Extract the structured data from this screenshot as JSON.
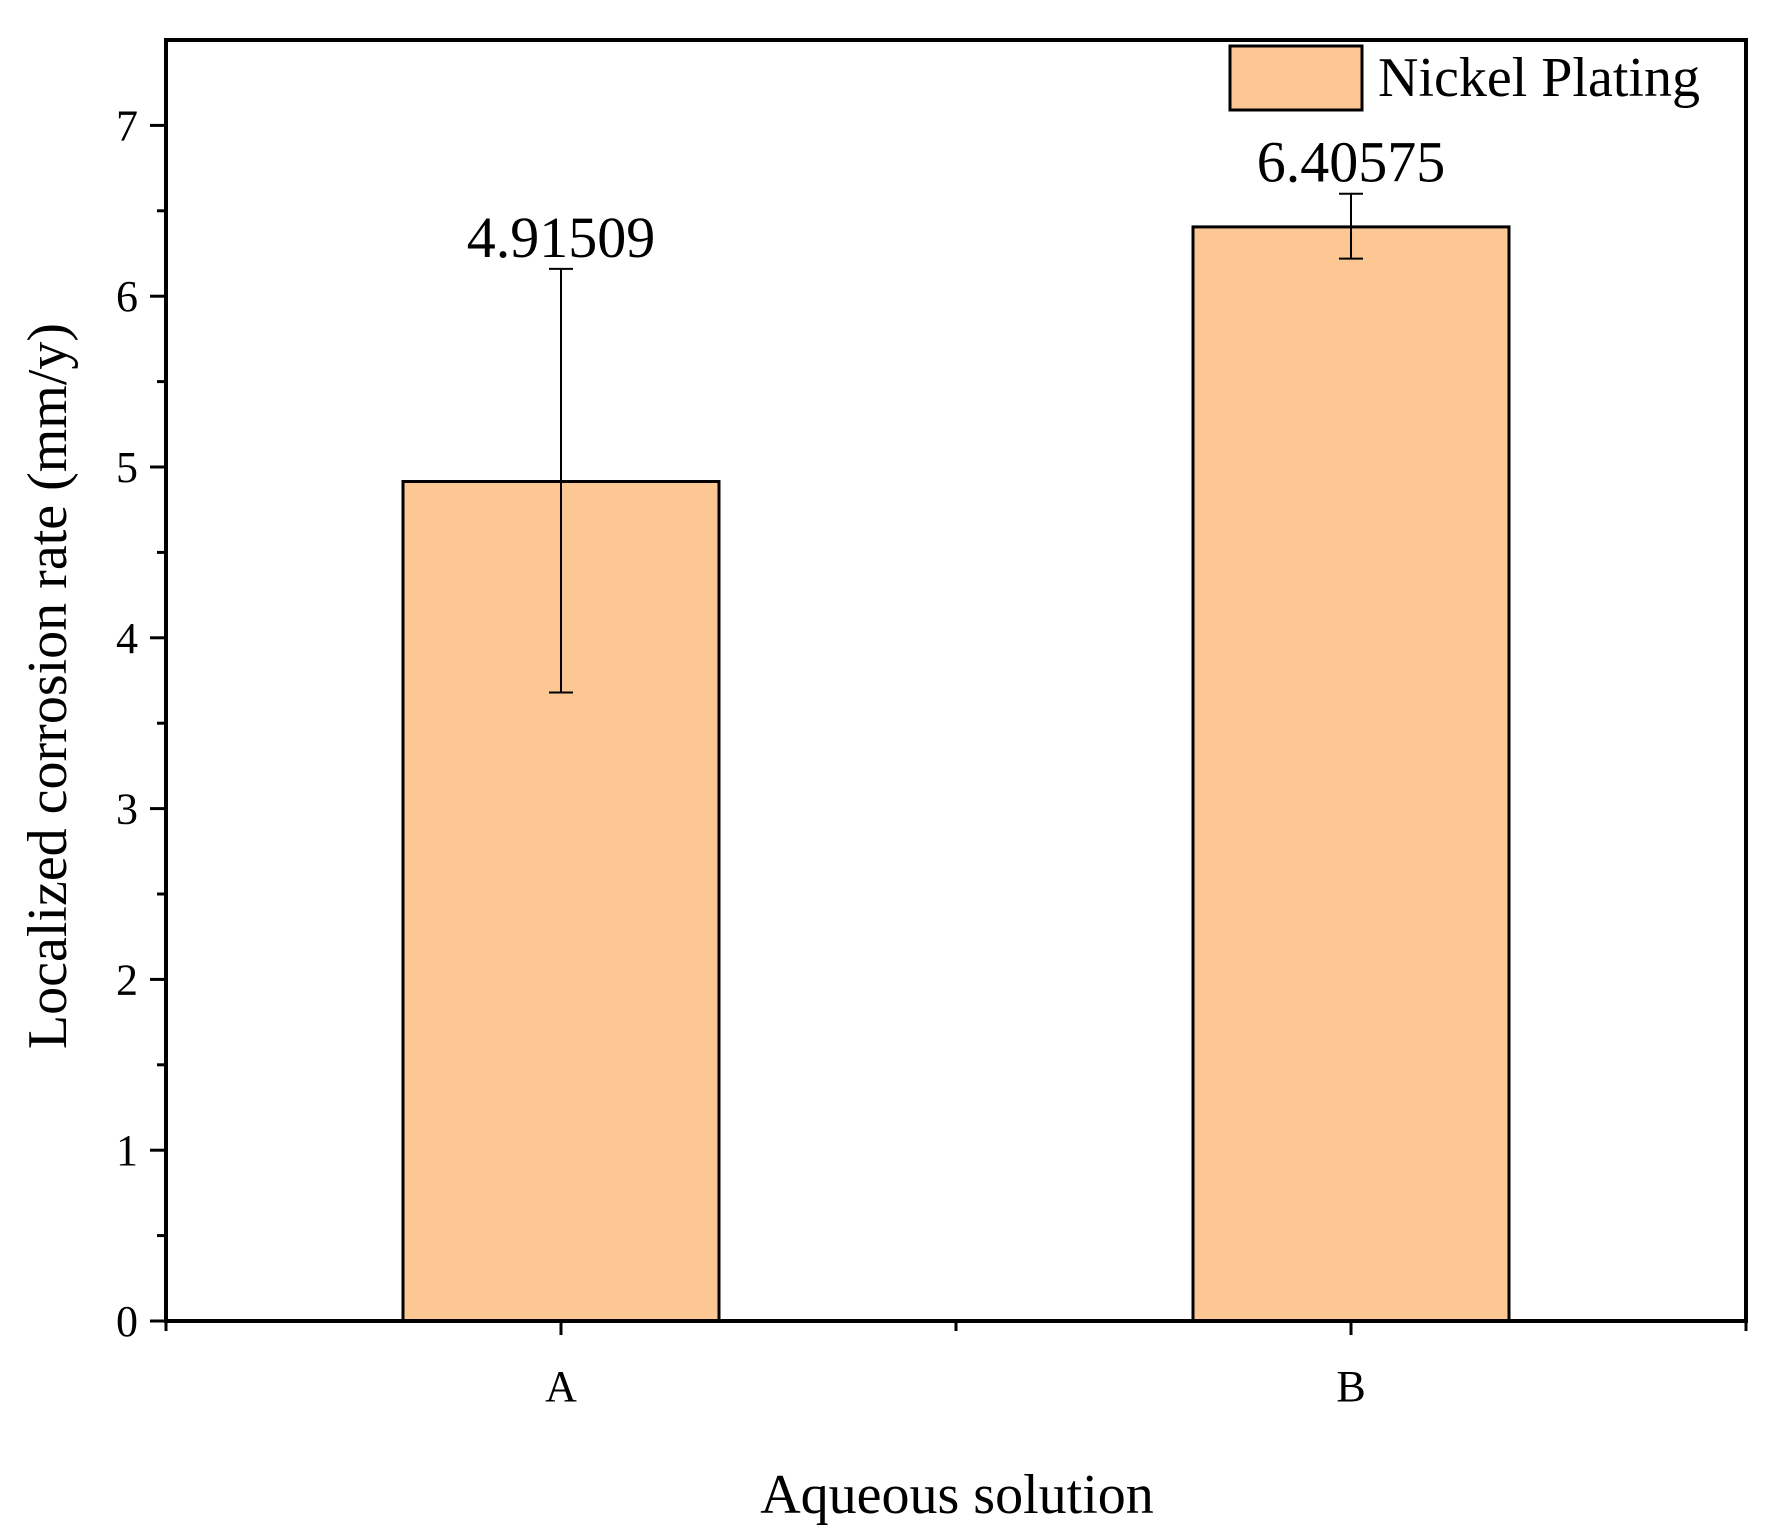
{
  "chart_data": {
    "type": "bar",
    "categories": [
      "A",
      "B"
    ],
    "series": [
      {
        "name": "Nickel Plating",
        "values": [
          4.91509,
          6.40575
        ],
        "error_low": [
          3.68,
          6.22
        ],
        "error_high": [
          6.16,
          6.6
        ],
        "data_labels": [
          "4.91509",
          "6.40575"
        ]
      }
    ],
    "xlabel": "Aqueous solution",
    "ylabel": "Localized corrosion rate (mm/y)",
    "ylim": [
      0,
      7.5
    ],
    "yticks": [
      0,
      1,
      2,
      3,
      4,
      5,
      6,
      7
    ],
    "ytick_labels": [
      "0",
      "1",
      "2",
      "3",
      "4",
      "5",
      "6",
      "7"
    ],
    "grid": false,
    "legend_position": "top-right",
    "bar_color": "#fcc792",
    "edge_color": "#000000"
  }
}
